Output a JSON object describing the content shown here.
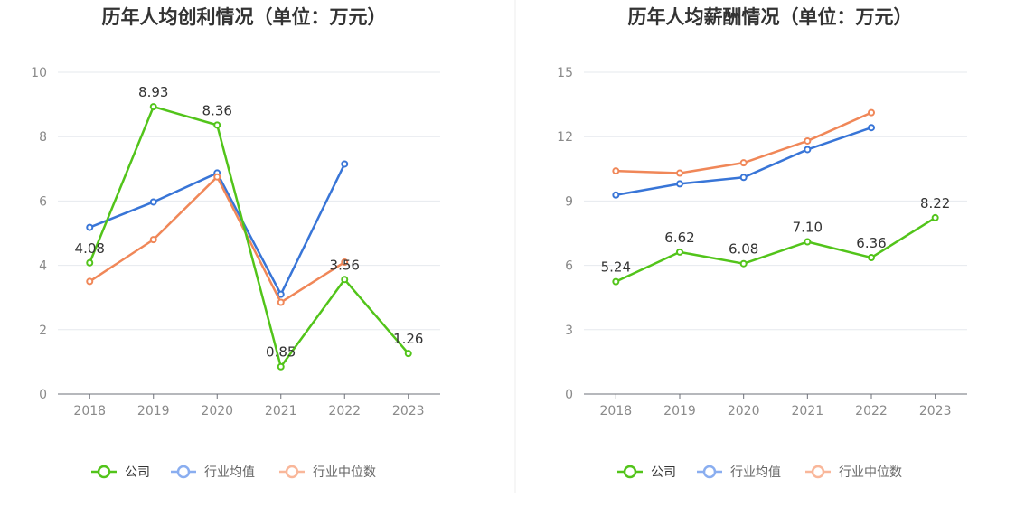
{
  "colors": {
    "company": "#52c41a",
    "industry_avg": "#3875d7",
    "industry_median": "#f08758",
    "legend_company": "#52c41a",
    "legend_industry_avg": "#8aaef0",
    "legend_industry_median": "#f9b79a"
  },
  "legend": {
    "company": "公司",
    "industry_avg": "行业均值",
    "industry_median": "行业中位数"
  },
  "chart_data": [
    {
      "type": "line",
      "title": "历年人均创利情况（单位：万元）",
      "x": [
        "2018",
        "2019",
        "2020",
        "2021",
        "2022",
        "2023"
      ],
      "ylim": [
        0,
        10
      ],
      "yticks": [
        0,
        2,
        4,
        6,
        8,
        10
      ],
      "grid": true,
      "legend_position": "bottom",
      "series": [
        {
          "name": "公司",
          "key": "company",
          "values": [
            4.08,
            8.93,
            8.36,
            0.85,
            3.56,
            1.26
          ],
          "labels": [
            "4.08",
            "8.93",
            "8.36",
            "0.85",
            "3.56",
            "1.26"
          ]
        },
        {
          "name": "行业均值",
          "key": "industry_avg",
          "values": [
            5.18,
            5.97,
            6.87,
            3.1,
            7.15,
            null
          ]
        },
        {
          "name": "行业中位数",
          "key": "industry_median",
          "values": [
            3.5,
            4.8,
            6.75,
            2.85,
            4.1,
            null
          ]
        }
      ]
    },
    {
      "type": "line",
      "title": "历年人均薪酬情况（单位：万元）",
      "x": [
        "2018",
        "2019",
        "2020",
        "2021",
        "2022",
        "2023"
      ],
      "ylim": [
        0,
        15
      ],
      "yticks": [
        0,
        3,
        6,
        9,
        12,
        15
      ],
      "grid": true,
      "legend_position": "bottom",
      "series": [
        {
          "name": "公司",
          "key": "company",
          "values": [
            5.24,
            6.62,
            6.08,
            7.1,
            6.36,
            8.22
          ],
          "labels": [
            "5.24",
            "6.62",
            "6.08",
            "7.10",
            "6.36",
            "8.22"
          ]
        },
        {
          "name": "行业均值",
          "key": "industry_avg",
          "values": [
            9.28,
            9.8,
            10.1,
            11.4,
            12.42,
            null
          ]
        },
        {
          "name": "行业中位数",
          "key": "industry_median",
          "values": [
            10.4,
            10.3,
            10.78,
            11.8,
            13.12,
            null
          ]
        }
      ]
    }
  ]
}
